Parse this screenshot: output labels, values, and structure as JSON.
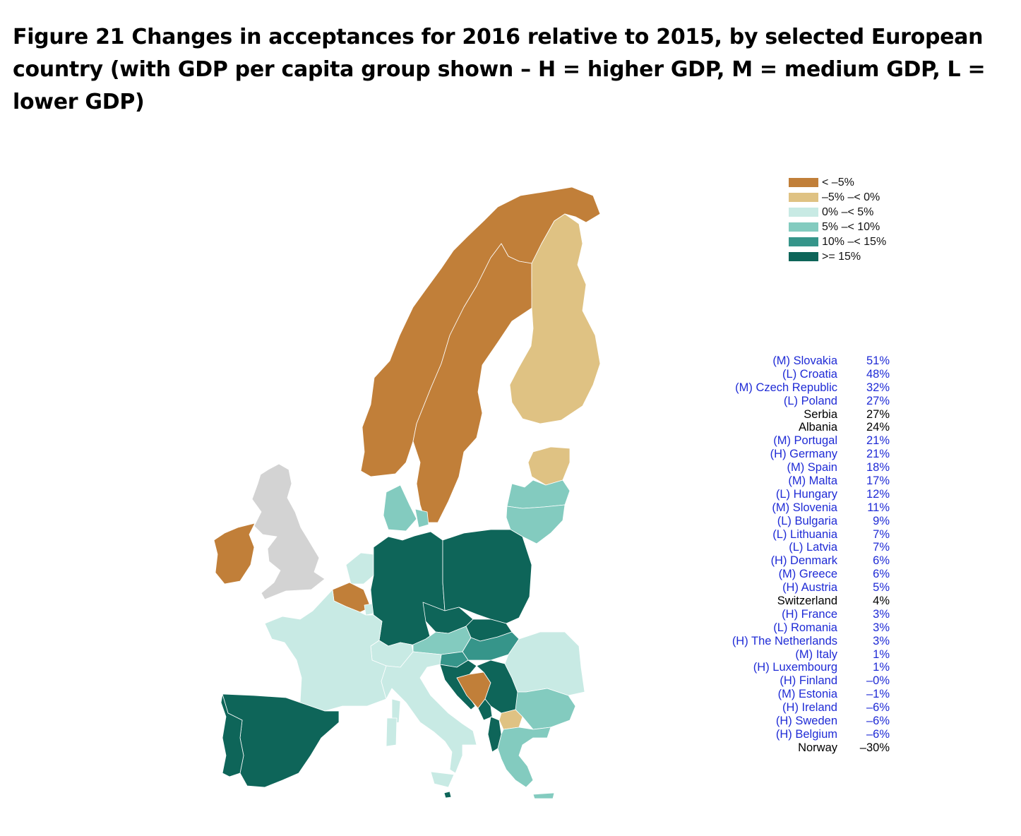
{
  "title": "Figure 21 Changes in acceptances for 2016 relative to 2015, by selected European country (with GDP per capita group shown – H = higher GDP, M = medium GDP, L = lower GDP)",
  "colors": {
    "lt_m5": "#c17f39",
    "m5_0": "#dfc283",
    "0_5": "#c8eae4",
    "5_10": "#83cbbf",
    "10_15": "#36958a",
    "ge15": "#0e6559",
    "nodata": "#d3d3d3",
    "label_gdp": "#1f2bd6",
    "label_plain": "#000000"
  },
  "legend": [
    {
      "label": "< –5%",
      "color": "#c17f39"
    },
    {
      "label": "–5% –< 0%",
      "color": "#dfc283"
    },
    {
      "label": "0% –< 5%",
      "color": "#c8eae4"
    },
    {
      "label": "5% –< 10%",
      "color": "#83cbbf"
    },
    {
      "label": "10% –< 15%",
      "color": "#36958a"
    },
    {
      "label": ">= 15%",
      "color": "#0e6559"
    }
  ],
  "ranking": [
    {
      "name": "(M) Slovakia",
      "value": "51%",
      "gdp": true
    },
    {
      "name": "(L) Croatia",
      "value": "48%",
      "gdp": true
    },
    {
      "name": "(M) Czech Republic",
      "value": "32%",
      "gdp": true
    },
    {
      "name": "(L) Poland",
      "value": "27%",
      "gdp": true
    },
    {
      "name": "Serbia",
      "value": "27%",
      "gdp": false
    },
    {
      "name": "Albania",
      "value": "24%",
      "gdp": false
    },
    {
      "name": "(M) Portugal",
      "value": "21%",
      "gdp": true
    },
    {
      "name": "(H) Germany",
      "value": "21%",
      "gdp": true
    },
    {
      "name": "(M) Spain",
      "value": "18%",
      "gdp": true
    },
    {
      "name": "(M) Malta",
      "value": "17%",
      "gdp": true
    },
    {
      "name": "(L) Hungary",
      "value": "12%",
      "gdp": true
    },
    {
      "name": "(M) Slovenia",
      "value": "11%",
      "gdp": true
    },
    {
      "name": "(L) Bulgaria",
      "value": "9%",
      "gdp": true
    },
    {
      "name": "(L) Lithuania",
      "value": "7%",
      "gdp": true
    },
    {
      "name": "(L) Latvia",
      "value": "7%",
      "gdp": true
    },
    {
      "name": "(H) Denmark",
      "value": "6%",
      "gdp": true
    },
    {
      "name": "(M) Greece",
      "value": "6%",
      "gdp": true
    },
    {
      "name": "(H) Austria",
      "value": "5%",
      "gdp": true
    },
    {
      "name": "Switzerland",
      "value": "4%",
      "gdp": false
    },
    {
      "name": "(H) France",
      "value": "3%",
      "gdp": true
    },
    {
      "name": "(L) Romania",
      "value": "3%",
      "gdp": true
    },
    {
      "name": "(H) The Netherlands",
      "value": "3%",
      "gdp": true
    },
    {
      "name": "(M) Italy",
      "value": "1%",
      "gdp": true
    },
    {
      "name": "(H) Luxembourg",
      "value": "1%",
      "gdp": true
    },
    {
      "name": "(H) Finland",
      "value": "–0%",
      "gdp": true
    },
    {
      "name": "(M) Estonia",
      "value": "–1%",
      "gdp": true
    },
    {
      "name": "(H) Ireland",
      "value": "–6%",
      "gdp": true
    },
    {
      "name": "(H) Sweden",
      "value": "–6%",
      "gdp": true
    },
    {
      "name": "(H) Belgium",
      "value": "–6%",
      "gdp": true
    },
    {
      "name": "Norway",
      "value": "–30%",
      "gdp": false
    }
  ],
  "regions": {
    "uk": {
      "class": "nodata"
    },
    "ireland": {
      "class": "lt_m5"
    },
    "norway": {
      "class": "lt_m5"
    },
    "sweden": {
      "class": "lt_m5"
    },
    "finland": {
      "class": "m5_0"
    },
    "estonia": {
      "class": "m5_0"
    },
    "latvia": {
      "class": "5_10"
    },
    "lithuania": {
      "class": "5_10"
    },
    "denmark": {
      "class": "5_10"
    },
    "netherlands": {
      "class": "0_5"
    },
    "belgium": {
      "class": "lt_m5"
    },
    "luxembourg": {
      "class": "0_5"
    },
    "germany": {
      "class": "ge15"
    },
    "poland": {
      "class": "ge15"
    },
    "czech": {
      "class": "ge15"
    },
    "slovakia": {
      "class": "ge15"
    },
    "austria": {
      "class": "5_10"
    },
    "hungary": {
      "class": "10_15"
    },
    "slovenia": {
      "class": "10_15"
    },
    "croatia": {
      "class": "ge15"
    },
    "bosnia": {
      "class": "lt_m5"
    },
    "serbia": {
      "class": "ge15"
    },
    "montenegro": {
      "class": "ge15"
    },
    "albania": {
      "class": "ge15"
    },
    "macedonia": {
      "class": "m5_0"
    },
    "romania": {
      "class": "0_5"
    },
    "bulgaria": {
      "class": "5_10"
    },
    "greece": {
      "class": "5_10"
    },
    "switzerland": {
      "class": "0_5"
    },
    "france": {
      "class": "0_5"
    },
    "italy": {
      "class": "0_5"
    },
    "spain": {
      "class": "ge15"
    },
    "portugal": {
      "class": "ge15"
    },
    "malta": {
      "class": "ge15"
    }
  }
}
